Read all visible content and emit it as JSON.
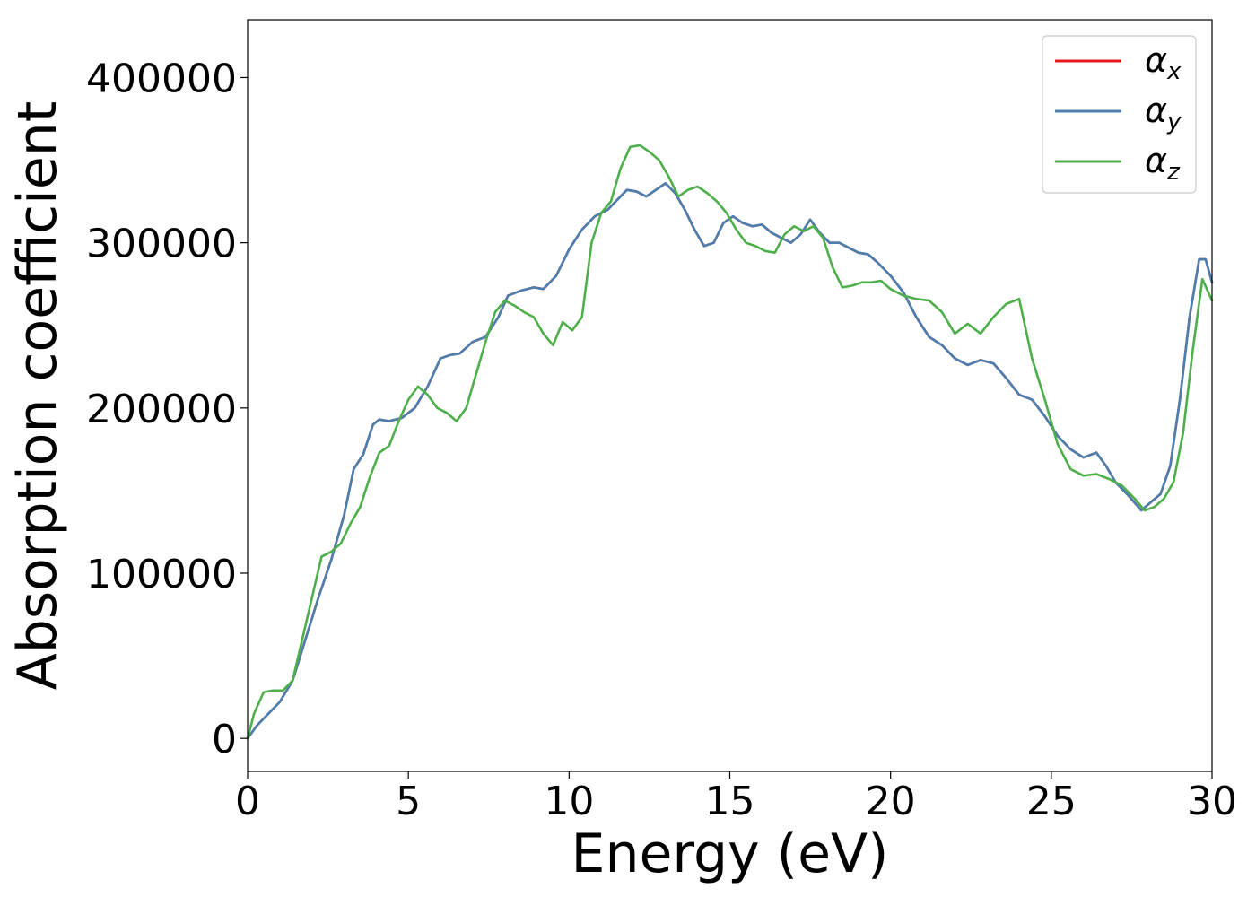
{
  "chart_data": {
    "type": "line",
    "title": "",
    "xlabel": "Energy (eV)",
    "ylabel": "Absorption coefficient",
    "xlim": [
      0,
      30
    ],
    "ylim": [
      -20000,
      435000
    ],
    "xticks": [
      0,
      5,
      10,
      15,
      20,
      25,
      30
    ],
    "yticks": [
      0,
      100000,
      200000,
      300000,
      400000
    ],
    "xtick_labels": [
      "0",
      "5",
      "10",
      "15",
      "20",
      "25",
      "30"
    ],
    "ytick_labels": [
      "0",
      "100000",
      "200000",
      "300000",
      "400000"
    ],
    "grid": false,
    "legend_position": "top-right",
    "series": [
      {
        "name": "α",
        "subscript": "x",
        "color": "#e41a1c",
        "x": [
          0,
          0.3,
          0.6,
          1.0,
          1.4,
          1.8,
          2.2,
          2.6,
          3.0,
          3.3,
          3.6,
          3.9,
          4.1,
          4.4,
          4.8,
          5.2,
          5.6,
          6.0,
          6.3,
          6.6,
          7.0,
          7.4,
          7.8,
          8.1,
          8.5,
          8.9,
          9.2,
          9.6,
          10.0,
          10.4,
          10.8,
          11.2,
          11.5,
          11.8,
          12.1,
          12.4,
          12.7,
          13.0,
          13.3,
          13.6,
          13.9,
          14.2,
          14.5,
          14.8,
          15.1,
          15.4,
          15.7,
          16.0,
          16.3,
          16.6,
          16.9,
          17.2,
          17.5,
          17.8,
          18.1,
          18.4,
          18.7,
          19.0,
          19.3,
          19.6,
          20.0,
          20.4,
          20.8,
          21.2,
          21.6,
          22.0,
          22.4,
          22.8,
          23.2,
          23.6,
          24.0,
          24.4,
          24.8,
          25.2,
          25.6,
          26.0,
          26.4,
          26.7,
          27.0,
          27.4,
          27.8,
          28.1,
          28.4,
          28.7,
          29.0,
          29.3,
          29.6,
          29.8,
          30.0
        ],
        "y": [
          0,
          8000,
          14000,
          22000,
          35000,
          60000,
          85000,
          108000,
          135000,
          163000,
          172000,
          190000,
          193000,
          192000,
          194000,
          200000,
          213000,
          230000,
          232000,
          233000,
          240000,
          243000,
          255000,
          268000,
          271000,
          273000,
          272000,
          280000,
          296000,
          308000,
          316000,
          320000,
          326000,
          332000,
          331000,
          328000,
          332000,
          336000,
          330000,
          320000,
          308000,
          298000,
          300000,
          312000,
          316000,
          312000,
          310000,
          311000,
          306000,
          303000,
          300000,
          305000,
          314000,
          306000,
          300000,
          300000,
          297000,
          294000,
          293000,
          288000,
          280000,
          270000,
          255000,
          243000,
          238000,
          230000,
          226000,
          229000,
          227000,
          218000,
          208000,
          205000,
          195000,
          183000,
          175000,
          170000,
          173000,
          165000,
          155000,
          147000,
          138000,
          143000,
          148000,
          165000,
          205000,
          255000,
          290000,
          290000,
          276000
        ]
      },
      {
        "name": "α",
        "subscript": "y",
        "color": "#4a7fb0",
        "x": [
          0,
          0.3,
          0.6,
          1.0,
          1.4,
          1.8,
          2.2,
          2.6,
          3.0,
          3.3,
          3.6,
          3.9,
          4.1,
          4.4,
          4.8,
          5.2,
          5.6,
          6.0,
          6.3,
          6.6,
          7.0,
          7.4,
          7.8,
          8.1,
          8.5,
          8.9,
          9.2,
          9.6,
          10.0,
          10.4,
          10.8,
          11.2,
          11.5,
          11.8,
          12.1,
          12.4,
          12.7,
          13.0,
          13.3,
          13.6,
          13.9,
          14.2,
          14.5,
          14.8,
          15.1,
          15.4,
          15.7,
          16.0,
          16.3,
          16.6,
          16.9,
          17.2,
          17.5,
          17.8,
          18.1,
          18.4,
          18.7,
          19.0,
          19.3,
          19.6,
          20.0,
          20.4,
          20.8,
          21.2,
          21.6,
          22.0,
          22.4,
          22.8,
          23.2,
          23.6,
          24.0,
          24.4,
          24.8,
          25.2,
          25.6,
          26.0,
          26.4,
          26.7,
          27.0,
          27.4,
          27.8,
          28.1,
          28.4,
          28.7,
          29.0,
          29.3,
          29.6,
          29.8,
          30.0
        ],
        "y": [
          0,
          8000,
          14000,
          22000,
          35000,
          60000,
          85000,
          108000,
          135000,
          163000,
          172000,
          190000,
          193000,
          192000,
          194000,
          200000,
          213000,
          230000,
          232000,
          233000,
          240000,
          243000,
          255000,
          268000,
          271000,
          273000,
          272000,
          280000,
          296000,
          308000,
          316000,
          320000,
          326000,
          332000,
          331000,
          328000,
          332000,
          336000,
          330000,
          320000,
          308000,
          298000,
          300000,
          312000,
          316000,
          312000,
          310000,
          311000,
          306000,
          303000,
          300000,
          305000,
          314000,
          306000,
          300000,
          300000,
          297000,
          294000,
          293000,
          288000,
          280000,
          270000,
          255000,
          243000,
          238000,
          230000,
          226000,
          229000,
          227000,
          218000,
          208000,
          205000,
          195000,
          183000,
          175000,
          170000,
          173000,
          165000,
          155000,
          147000,
          138000,
          143000,
          148000,
          165000,
          205000,
          255000,
          290000,
          290000,
          276000
        ]
      },
      {
        "name": "α",
        "subscript": "z",
        "color": "#4daf4a",
        "x": [
          0,
          0.2,
          0.5,
          0.8,
          1.1,
          1.4,
          1.7,
          2.0,
          2.3,
          2.6,
          2.9,
          3.2,
          3.5,
          3.8,
          4.1,
          4.4,
          4.7,
          5.0,
          5.3,
          5.6,
          5.9,
          6.2,
          6.5,
          6.8,
          7.1,
          7.4,
          7.7,
          8.0,
          8.3,
          8.6,
          8.9,
          9.2,
          9.5,
          9.8,
          10.1,
          10.4,
          10.7,
          11.0,
          11.3,
          11.6,
          11.9,
          12.2,
          12.5,
          12.8,
          13.1,
          13.4,
          13.7,
          14.0,
          14.3,
          14.6,
          14.9,
          15.2,
          15.5,
          15.8,
          16.1,
          16.4,
          16.7,
          17.0,
          17.3,
          17.6,
          17.9,
          18.2,
          18.5,
          18.8,
          19.1,
          19.4,
          19.7,
          20.0,
          20.4,
          20.8,
          21.2,
          21.6,
          22.0,
          22.4,
          22.8,
          23.2,
          23.6,
          24.0,
          24.4,
          24.8,
          25.2,
          25.6,
          26.0,
          26.4,
          26.8,
          27.2,
          27.6,
          27.9,
          28.2,
          28.5,
          28.8,
          29.1,
          29.4,
          29.7,
          30.0
        ],
        "y": [
          0,
          15000,
          28000,
          29000,
          29000,
          35000,
          60000,
          85000,
          110000,
          113000,
          118000,
          130000,
          140000,
          158000,
          173000,
          177000,
          192000,
          205000,
          213000,
          208000,
          200000,
          197000,
          192000,
          200000,
          220000,
          240000,
          258000,
          265000,
          262000,
          258000,
          255000,
          245000,
          238000,
          252000,
          247000,
          255000,
          300000,
          318000,
          325000,
          345000,
          358000,
          359000,
          355000,
          350000,
          340000,
          328000,
          332000,
          334000,
          330000,
          325000,
          318000,
          308000,
          300000,
          298000,
          295000,
          294000,
          305000,
          310000,
          307000,
          310000,
          303000,
          285000,
          273000,
          274000,
          276000,
          276000,
          277000,
          272000,
          268000,
          266000,
          265000,
          258000,
          245000,
          251000,
          245000,
          255000,
          263000,
          266000,
          230000,
          205000,
          178000,
          163000,
          159000,
          160000,
          157000,
          153000,
          145000,
          138000,
          140000,
          145000,
          155000,
          185000,
          235000,
          278000,
          265000
        ]
      }
    ]
  }
}
